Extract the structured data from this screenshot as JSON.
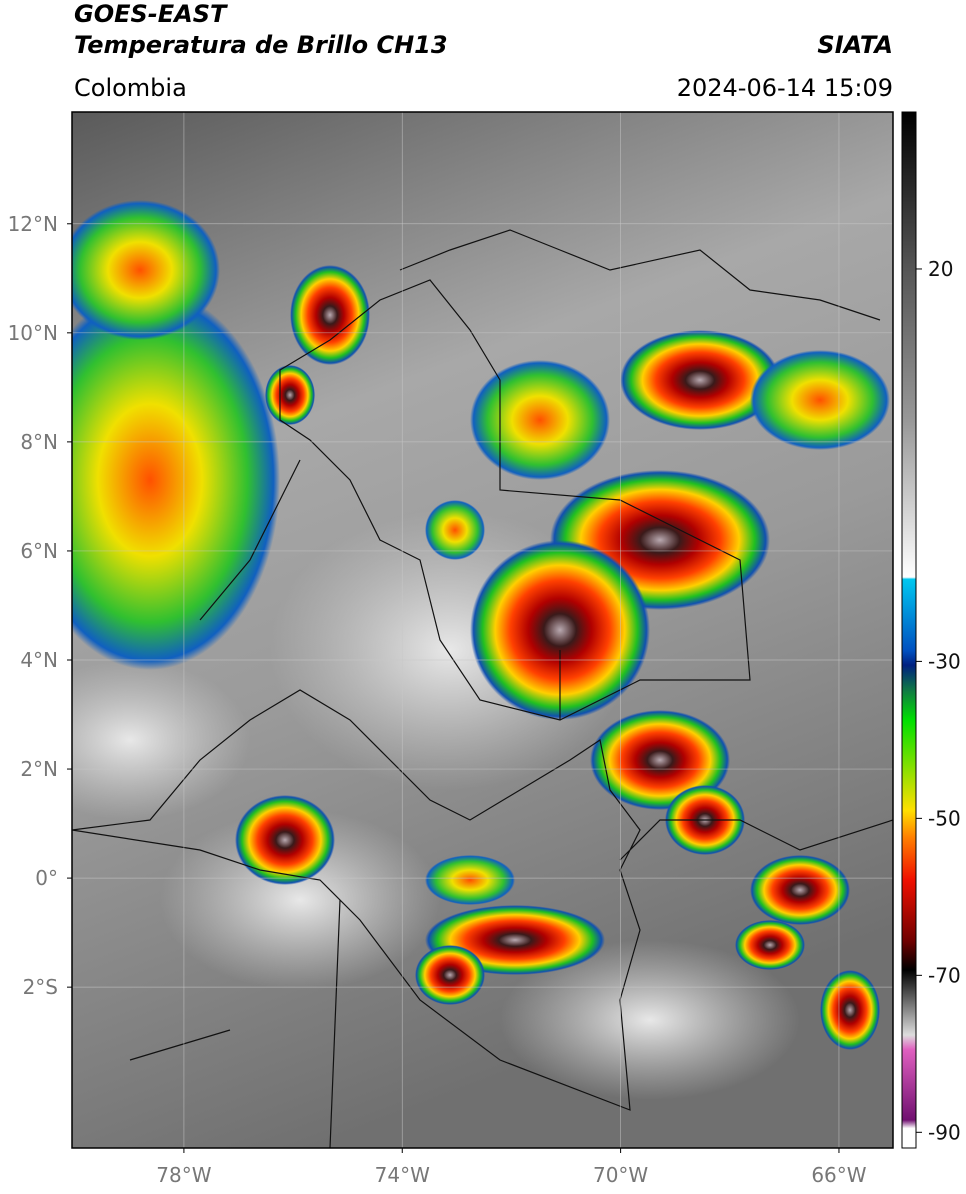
{
  "header": {
    "title": "GOES-EAST",
    "subtitle": "Temperatura de Brillo CH13",
    "source": "SIATA",
    "region": "Colombia",
    "datetime": "2024-06-14 15:09"
  },
  "map": {
    "xlim": [
      -80.05,
      -65.01
    ],
    "ylim": [
      -4.95,
      14.05
    ],
    "xticks": [
      {
        "value": -78,
        "label": "78°W"
      },
      {
        "value": -74,
        "label": "74°W"
      },
      {
        "value": -70,
        "label": "70°W"
      },
      {
        "value": -66,
        "label": "66°W"
      }
    ],
    "yticks": [
      {
        "value": 12,
        "label": "12°N"
      },
      {
        "value": 10,
        "label": "10°N"
      },
      {
        "value": 8,
        "label": "8°N"
      },
      {
        "value": 6,
        "label": "6°N"
      },
      {
        "value": 4,
        "label": "4°N"
      },
      {
        "value": 2,
        "label": "2°N"
      },
      {
        "value": 0,
        "label": "0°"
      },
      {
        "value": -2,
        "label": "2°S"
      }
    ]
  },
  "colorbar": {
    "lim": [
      -92,
      40
    ],
    "ticks": [
      20,
      -30,
      -50,
      -70,
      -90
    ]
  }
}
